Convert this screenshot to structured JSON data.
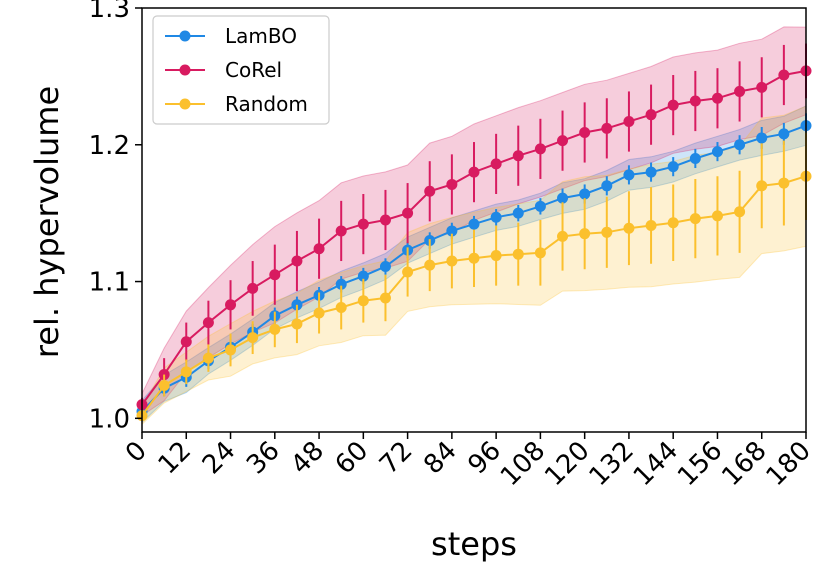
{
  "chart_data": {
    "type": "line",
    "title": "",
    "xlabel": "steps",
    "ylabel": "rel. hypervolume",
    "xlim": [
      0,
      180
    ],
    "ylim": [
      0.99,
      1.3
    ],
    "x_ticks": [
      0,
      12,
      24,
      36,
      48,
      60,
      72,
      84,
      96,
      108,
      120,
      132,
      144,
      156,
      168,
      180
    ],
    "x_tick_labels": [
      "0",
      "12",
      "24",
      "36",
      "48",
      "60",
      "72",
      "84",
      "96",
      "108",
      "120",
      "132",
      "144",
      "156",
      "168",
      "180"
    ],
    "y_ticks": [
      1.0,
      1.1,
      1.2,
      1.3
    ],
    "y_tick_labels": [
      "1.0",
      "1.1",
      "1.2",
      "1.3"
    ],
    "legend_position": "top-left",
    "series": [
      {
        "name": "LamBO",
        "color": "#1f88e5",
        "x": [
          0,
          6,
          12,
          18,
          24,
          30,
          36,
          42,
          48,
          54,
          60,
          66,
          72,
          78,
          84,
          90,
          96,
          102,
          108,
          114,
          120,
          126,
          132,
          138,
          144,
          150,
          156,
          162,
          168,
          174,
          180
        ],
        "values": [
          1.005,
          1.022,
          1.03,
          1.042,
          1.052,
          1.063,
          1.075,
          1.083,
          1.09,
          1.098,
          1.104,
          1.111,
          1.123,
          1.13,
          1.137,
          1.142,
          1.147,
          1.15,
          1.155,
          1.161,
          1.164,
          1.17,
          1.178,
          1.18,
          1.184,
          1.19,
          1.195,
          1.2,
          1.205,
          1.208,
          1.214
        ],
        "err": [
          0.005,
          0.006,
          0.007,
          0.006,
          0.006,
          0.006,
          0.006,
          0.006,
          0.006,
          0.006,
          0.006,
          0.006,
          0.006,
          0.006,
          0.006,
          0.006,
          0.006,
          0.006,
          0.006,
          0.007,
          0.007,
          0.007,
          0.007,
          0.007,
          0.007,
          0.007,
          0.007,
          0.007,
          0.008,
          0.008,
          0.009
        ]
      },
      {
        "name": "CoRel",
        "color": "#d81b60",
        "x": [
          0,
          6,
          12,
          18,
          24,
          30,
          36,
          42,
          48,
          54,
          60,
          66,
          72,
          78,
          84,
          90,
          96,
          102,
          108,
          114,
          120,
          126,
          132,
          138,
          144,
          150,
          156,
          162,
          168,
          174,
          180
        ],
        "values": [
          1.01,
          1.032,
          1.056,
          1.07,
          1.083,
          1.095,
          1.105,
          1.115,
          1.124,
          1.137,
          1.142,
          1.145,
          1.15,
          1.166,
          1.171,
          1.18,
          1.186,
          1.192,
          1.197,
          1.203,
          1.209,
          1.212,
          1.217,
          1.222,
          1.229,
          1.232,
          1.234,
          1.239,
          1.242,
          1.251,
          1.254
        ],
        "err": [
          0.005,
          0.012,
          0.014,
          0.016,
          0.018,
          0.02,
          0.022,
          0.022,
          0.022,
          0.022,
          0.022,
          0.022,
          0.022,
          0.022,
          0.022,
          0.022,
          0.022,
          0.022,
          0.022,
          0.022,
          0.022,
          0.022,
          0.022,
          0.022,
          0.022,
          0.022,
          0.022,
          0.022,
          0.022,
          0.022,
          0.02
        ]
      },
      {
        "name": "Random",
        "color": "#fbc02d",
        "x": [
          0,
          6,
          12,
          18,
          24,
          30,
          36,
          42,
          48,
          54,
          60,
          66,
          72,
          78,
          84,
          90,
          96,
          102,
          108,
          114,
          120,
          126,
          132,
          138,
          144,
          150,
          156,
          162,
          168,
          174,
          180
        ],
        "values": [
          1.002,
          1.024,
          1.034,
          1.044,
          1.05,
          1.059,
          1.065,
          1.069,
          1.077,
          1.081,
          1.086,
          1.088,
          1.107,
          1.112,
          1.115,
          1.117,
          1.119,
          1.12,
          1.121,
          1.133,
          1.135,
          1.136,
          1.139,
          1.141,
          1.143,
          1.146,
          1.148,
          1.151,
          1.17,
          1.172,
          1.177
        ],
        "err": [
          0.004,
          0.008,
          0.009,
          0.01,
          0.012,
          0.012,
          0.013,
          0.014,
          0.015,
          0.016,
          0.016,
          0.017,
          0.018,
          0.019,
          0.02,
          0.021,
          0.022,
          0.023,
          0.024,
          0.025,
          0.026,
          0.026,
          0.027,
          0.028,
          0.028,
          0.029,
          0.029,
          0.03,
          0.031,
          0.031,
          0.032
        ]
      }
    ]
  }
}
